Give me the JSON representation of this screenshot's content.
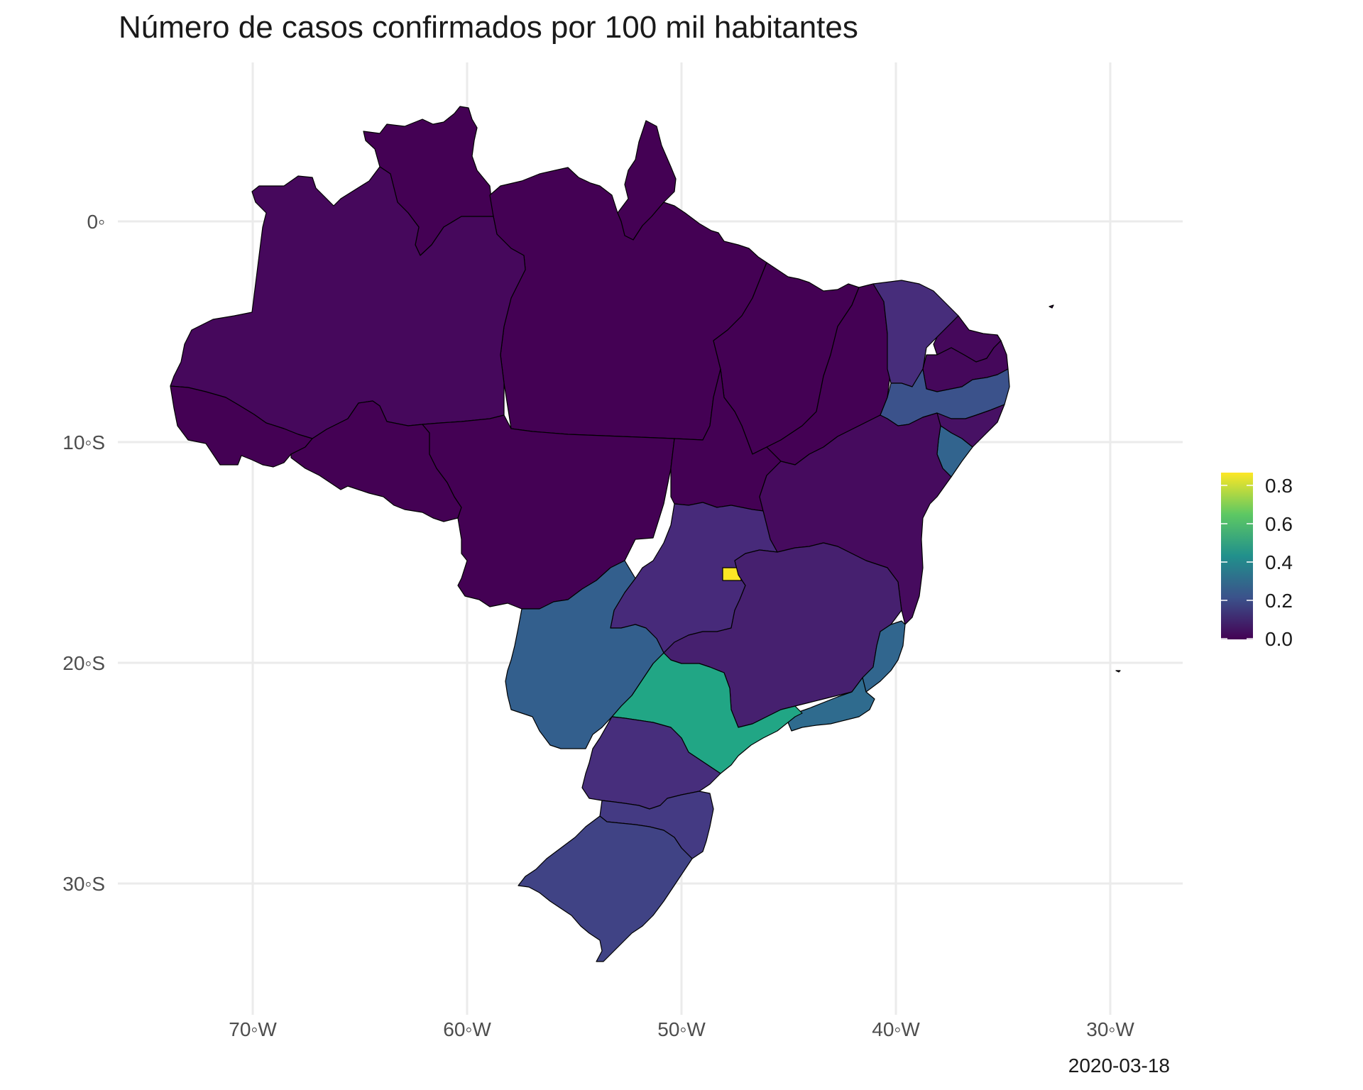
{
  "title": "Número de casos confirmados por 100 mil habitantes",
  "caption": "2020-03-18",
  "axes": {
    "x_ticks": [
      "70◦W",
      "60◦W",
      "50◦W",
      "40◦W",
      "30◦W"
    ],
    "y_ticks": [
      "0◦",
      "10◦S",
      "20◦S",
      "30◦S"
    ]
  },
  "legend": {
    "ticks": [
      "0.0",
      "0.2",
      "0.4",
      "0.6",
      "0.8"
    ],
    "palette": [
      "#440154",
      "#3b528b",
      "#21908c",
      "#5dc863",
      "#fde725"
    ]
  },
  "colors": {
    "grid": "#ebebeb",
    "border": "#000000",
    "axis_text": "#4d4d4d"
  },
  "chart_data": {
    "type": "map",
    "title": "Número de casos confirmados por 100 mil habitantes",
    "xlabel": "",
    "ylabel": "",
    "xlim": [
      -76,
      -27
    ],
    "ylim": [
      -34.5,
      6.5
    ],
    "grid": true,
    "legend_position": "right",
    "color_scale": {
      "name": "viridis",
      "range": [
        0,
        0.85
      ]
    },
    "regions": [
      {
        "name": "AC",
        "value": 0.0,
        "color": "#440154"
      },
      {
        "name": "AM",
        "value": 0.05,
        "color": "#46085c"
      },
      {
        "name": "RR",
        "value": 0.0,
        "color": "#440154"
      },
      {
        "name": "PA",
        "value": 0.0,
        "color": "#440154"
      },
      {
        "name": "AP",
        "value": 0.0,
        "color": "#440154"
      },
      {
        "name": "RO",
        "value": 0.0,
        "color": "#440154"
      },
      {
        "name": "MT",
        "value": 0.0,
        "color": "#440154"
      },
      {
        "name": "TO",
        "value": 0.0,
        "color": "#440154"
      },
      {
        "name": "MA",
        "value": 0.0,
        "color": "#440154"
      },
      {
        "name": "PI",
        "value": 0.0,
        "color": "#440154"
      },
      {
        "name": "CE",
        "value": 0.12,
        "color": "#472d7b"
      },
      {
        "name": "RN",
        "value": 0.03,
        "color": "#45085b"
      },
      {
        "name": "PB",
        "value": 0.03,
        "color": "#45085b"
      },
      {
        "name": "PE",
        "value": 0.2,
        "color": "#3b528b"
      },
      {
        "name": "AL",
        "value": 0.06,
        "color": "#471164"
      },
      {
        "name": "SE",
        "value": 0.27,
        "color": "#32648e"
      },
      {
        "name": "BA",
        "value": 0.05,
        "color": "#460b5e"
      },
      {
        "name": "GO",
        "value": 0.1,
        "color": "#472a7a"
      },
      {
        "name": "DF",
        "value": 0.85,
        "color": "#fde725"
      },
      {
        "name": "MG",
        "value": 0.08,
        "color": "#46206f"
      },
      {
        "name": "ES",
        "value": 0.28,
        "color": "#31668e"
      },
      {
        "name": "RJ",
        "value": 0.3,
        "color": "#2f6b8e"
      },
      {
        "name": "SP",
        "value": 0.5,
        "color": "#21a685"
      },
      {
        "name": "MS",
        "value": 0.3,
        "color": "#335f8d"
      },
      {
        "name": "PR",
        "value": 0.12,
        "color": "#472e7c"
      },
      {
        "name": "SC",
        "value": 0.16,
        "color": "#443a83"
      },
      {
        "name": "RS",
        "value": 0.18,
        "color": "#404385"
      }
    ]
  }
}
